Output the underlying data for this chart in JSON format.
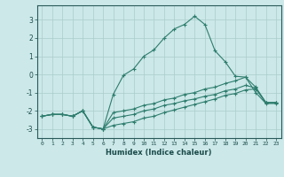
{
  "xlabel": "Humidex (Indice chaleur)",
  "ylabel": "",
  "xlim": [
    -0.5,
    23.5
  ],
  "ylim": [
    -3.5,
    3.8
  ],
  "yticks": [
    -3,
    -2,
    -1,
    0,
    1,
    2,
    3
  ],
  "xticks": [
    0,
    1,
    2,
    3,
    4,
    5,
    6,
    7,
    8,
    9,
    10,
    11,
    12,
    13,
    14,
    15,
    16,
    17,
    18,
    19,
    20,
    21,
    22,
    23
  ],
  "bg_color": "#cce8e8",
  "grid_color": "#aacccc",
  "line_color": "#2e7d6e",
  "lines": [
    {
      "x": [
        0,
        1,
        2,
        3,
        4,
        5,
        6,
        7,
        8,
        9,
        10,
        11,
        12,
        13,
        14,
        15,
        16,
        17,
        18,
        19,
        20,
        21,
        22,
        23
      ],
      "y": [
        -2.3,
        -2.2,
        -2.2,
        -2.3,
        -2.0,
        -2.9,
        -3.0,
        -1.1,
        -0.05,
        0.3,
        1.0,
        1.35,
        2.0,
        2.5,
        2.75,
        3.2,
        2.75,
        1.3,
        0.7,
        -0.1,
        -0.15,
        -1.0,
        -1.6,
        -1.6
      ]
    },
    {
      "x": [
        0,
        1,
        2,
        3,
        4,
        5,
        6,
        7,
        8,
        9,
        10,
        11,
        12,
        13,
        14,
        15,
        16,
        17,
        18,
        19,
        20,
        21,
        22,
        23
      ],
      "y": [
        -2.3,
        -2.2,
        -2.2,
        -2.3,
        -2.0,
        -2.9,
        -3.0,
        -2.1,
        -2.0,
        -1.9,
        -1.7,
        -1.6,
        -1.4,
        -1.3,
        -1.1,
        -1.0,
        -0.8,
        -0.7,
        -0.5,
        -0.35,
        -0.15,
        -0.7,
        -1.55,
        -1.55
      ]
    },
    {
      "x": [
        0,
        1,
        2,
        3,
        4,
        5,
        6,
        7,
        8,
        9,
        10,
        11,
        12,
        13,
        14,
        15,
        16,
        17,
        18,
        19,
        20,
        21,
        22,
        23
      ],
      "y": [
        -2.3,
        -2.2,
        -2.2,
        -2.3,
        -2.0,
        -2.9,
        -3.0,
        -2.4,
        -2.3,
        -2.2,
        -2.0,
        -1.9,
        -1.7,
        -1.6,
        -1.45,
        -1.35,
        -1.2,
        -1.1,
        -0.9,
        -0.8,
        -0.6,
        -0.75,
        -1.55,
        -1.55
      ]
    },
    {
      "x": [
        0,
        1,
        2,
        3,
        4,
        5,
        6,
        7,
        8,
        9,
        10,
        11,
        12,
        13,
        14,
        15,
        16,
        17,
        18,
        19,
        20,
        21,
        22,
        23
      ],
      "y": [
        -2.3,
        -2.2,
        -2.2,
        -2.3,
        -2.0,
        -2.9,
        -3.0,
        -2.8,
        -2.7,
        -2.6,
        -2.4,
        -2.3,
        -2.1,
        -1.95,
        -1.8,
        -1.65,
        -1.5,
        -1.35,
        -1.15,
        -1.05,
        -0.85,
        -0.8,
        -1.55,
        -1.55
      ]
    }
  ]
}
